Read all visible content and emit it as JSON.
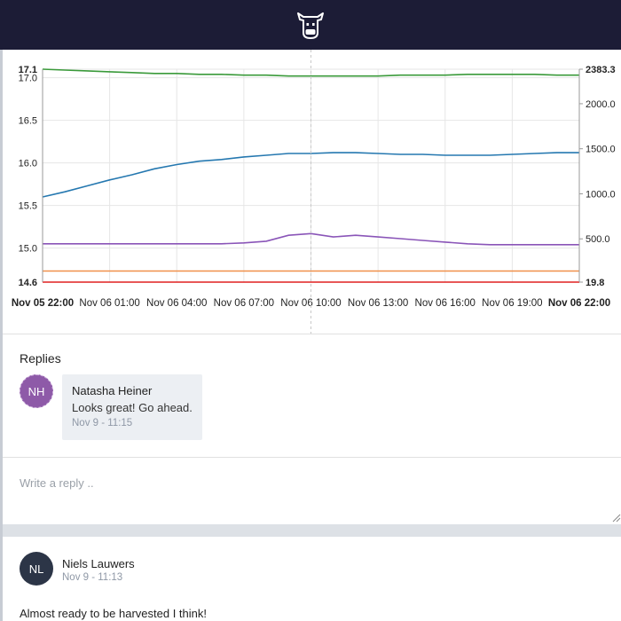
{
  "app": {
    "logo_icon": "cow-head-icon"
  },
  "chart_data": {
    "type": "line",
    "x": [
      "Nov 05 22:00",
      "Nov 06 01:00",
      "Nov 06 04:00",
      "Nov 06 07:00",
      "Nov 06 10:00",
      "Nov 06 13:00",
      "Nov 06 16:00",
      "Nov 06 19:00",
      "Nov 06 22:00"
    ],
    "x_tick_labels": [
      "Nov 05 22:00",
      "Nov 06 01:00",
      "Nov 06 04:00",
      "Nov 06 07:00",
      "Nov 06 10:00",
      "Nov 06 13:00",
      "Nov 06 16:00",
      "Nov 06 19:00",
      "Nov 06 22:00"
    ],
    "y_left": {
      "ticks": [
        "17.1",
        "17.0",
        "16.5",
        "16.0",
        "15.5",
        "15.0",
        "14.6"
      ],
      "ylim": [
        14.6,
        17.1
      ]
    },
    "y_right": {
      "ticks": [
        "2383.3",
        "2000.0",
        "1500.0",
        "1000.0",
        "500.0",
        "19.8"
      ],
      "ylim": [
        19.8,
        2383.3
      ]
    },
    "crosshair_x": "Nov 06 10:00",
    "grid": true,
    "series": [
      {
        "color": "#3a9a3a",
        "axis": "left",
        "x": [
          0,
          1,
          2,
          3,
          4,
          5,
          6,
          7,
          8,
          9,
          10,
          11,
          12,
          13,
          14,
          15,
          16,
          17,
          18,
          19,
          20,
          21,
          22,
          23,
          24
        ],
        "values": [
          17.1,
          17.09,
          17.08,
          17.07,
          17.06,
          17.05,
          17.05,
          17.04,
          17.04,
          17.03,
          17.03,
          17.02,
          17.02,
          17.02,
          17.02,
          17.02,
          17.03,
          17.03,
          17.03,
          17.04,
          17.04,
          17.04,
          17.04,
          17.03,
          17.03
        ]
      },
      {
        "color": "#2578b0",
        "axis": "left",
        "x": [
          0,
          1,
          2,
          3,
          4,
          5,
          6,
          7,
          8,
          9,
          10,
          11,
          12,
          13,
          14,
          15,
          16,
          17,
          18,
          19,
          20,
          21,
          22,
          23,
          24
        ],
        "values": [
          15.6,
          15.66,
          15.73,
          15.8,
          15.86,
          15.93,
          15.98,
          16.02,
          16.04,
          16.07,
          16.09,
          16.11,
          16.11,
          16.12,
          16.12,
          16.11,
          16.1,
          16.1,
          16.09,
          16.09,
          16.09,
          16.1,
          16.11,
          16.12,
          16.12
        ]
      },
      {
        "color": "#8a55b8",
        "axis": "left",
        "x": [
          0,
          1,
          2,
          3,
          4,
          5,
          6,
          7,
          8,
          9,
          10,
          11,
          12,
          13,
          14,
          15,
          16,
          17,
          18,
          19,
          20,
          21,
          22,
          23,
          24
        ],
        "values": [
          15.05,
          15.05,
          15.05,
          15.05,
          15.05,
          15.05,
          15.05,
          15.05,
          15.05,
          15.06,
          15.08,
          15.15,
          15.17,
          15.13,
          15.15,
          15.13,
          15.11,
          15.09,
          15.07,
          15.05,
          15.04,
          15.04,
          15.04,
          15.04,
          15.04
        ]
      },
      {
        "color": "#f0904a",
        "axis": "left",
        "x": [
          0,
          24
        ],
        "values": [
          14.73,
          14.73
        ]
      },
      {
        "color": "#e02020",
        "axis": "left",
        "x": [
          0,
          24
        ],
        "values": [
          14.6,
          14.6
        ]
      }
    ]
  },
  "replies": {
    "title": "Replies",
    "items": [
      {
        "initials": "NH",
        "name": "Natasha Heiner",
        "text": "Looks great! Go ahead.",
        "time": "Nov 9 - 11:15",
        "avatar_color": "#8e5aa8"
      }
    ],
    "input_placeholder": "Write a reply .."
  },
  "post": {
    "initials": "NL",
    "name": "Niels Lauwers",
    "time": "Nov 9 - 11:13",
    "text": "Almost ready to be harvested I think!",
    "avatar_color": "#2c3547"
  }
}
